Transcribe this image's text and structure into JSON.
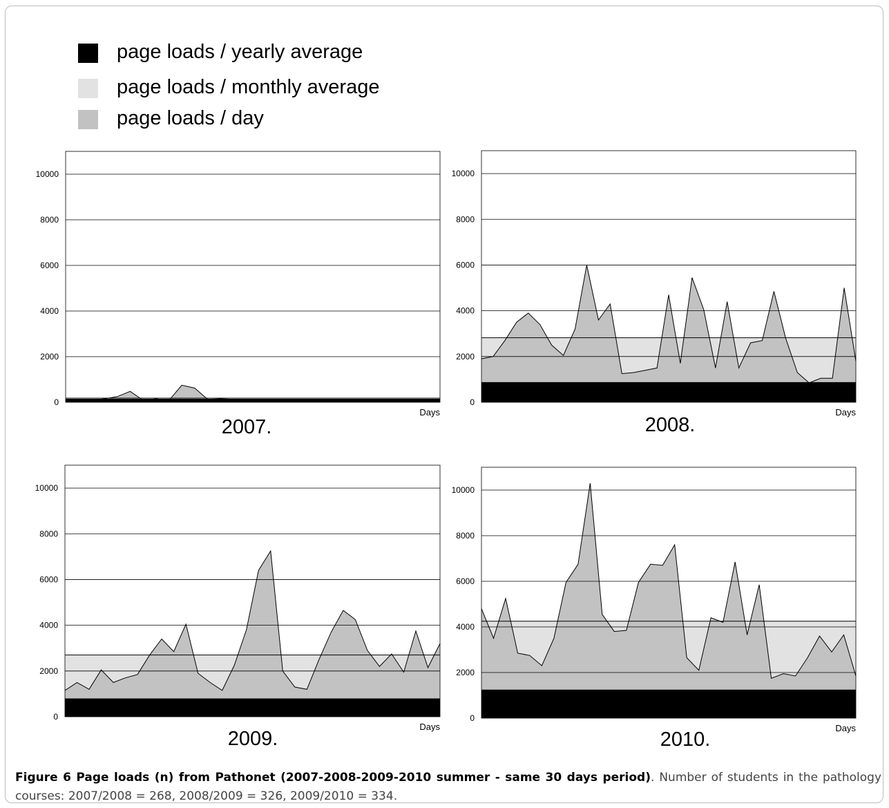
{
  "legend": [
    {
      "label": "page loads / yearly average",
      "color": "#000000"
    },
    {
      "label": "page loads / monthly average",
      "color": "#e2e2e2"
    },
    {
      "label": "page loads / day",
      "color": "#c2c2c2"
    }
  ],
  "chart_data": [
    {
      "type": "area",
      "year_label": "2007.",
      "xlabel": "Days",
      "ylim": [
        0,
        11000
      ],
      "yticks": [
        0,
        2000,
        4000,
        6000,
        8000,
        10000
      ],
      "yearly_average": 150,
      "monthly_average": 180,
      "daily": [
        50,
        80,
        90,
        150,
        250,
        480,
        90,
        150,
        80,
        750,
        620,
        130,
        150,
        130,
        110,
        40,
        40,
        60,
        50,
        30,
        120,
        80,
        60,
        40,
        50,
        40,
        30,
        20,
        30,
        40
      ],
      "colors": {
        "daily": "#c2c2c2",
        "monthly": "#e2e2e2",
        "yearly": "#000000",
        "grid": "#000000"
      }
    },
    {
      "type": "area",
      "year_label": "2008.",
      "xlabel": "Days",
      "ylim": [
        0,
        11000
      ],
      "yticks": [
        0,
        2000,
        4000,
        6000,
        8000,
        10000
      ],
      "yearly_average": 880,
      "monthly_average": 2820,
      "daily": [
        1900,
        2000,
        2700,
        3500,
        3900,
        3400,
        2500,
        2050,
        3200,
        6000,
        3600,
        4300,
        1250,
        1300,
        1400,
        1500,
        4700,
        1700,
        5450,
        4050,
        1500,
        4400,
        1500,
        2600,
        2700,
        4850,
        2800,
        1300,
        850,
        1050,
        1050,
        5000,
        1800
      ],
      "colors": {
        "daily": "#c2c2c2",
        "monthly": "#e2e2e2",
        "yearly": "#000000",
        "grid": "#000000"
      }
    },
    {
      "type": "area",
      "year_label": "2009.",
      "xlabel": "Days",
      "ylim": [
        0,
        11000
      ],
      "yticks": [
        0,
        2000,
        4000,
        6000,
        8000,
        10000
      ],
      "yearly_average": 800,
      "monthly_average": 2700,
      "daily": [
        1150,
        1500,
        1200,
        2050,
        1500,
        1700,
        1850,
        2700,
        3400,
        2850,
        4050,
        1900,
        1500,
        1150,
        2250,
        3800,
        6400,
        7250,
        2000,
        1300,
        1200,
        2500,
        3700,
        4650,
        4250,
        2900,
        2200,
        2750,
        1950,
        3750,
        2150,
        3200
      ],
      "colors": {
        "daily": "#c2c2c2",
        "monthly": "#e2e2e2",
        "yearly": "#000000",
        "grid": "#000000"
      }
    },
    {
      "type": "area",
      "year_label": "2010.",
      "xlabel": "Days",
      "ylim": [
        0,
        11000
      ],
      "yticks": [
        0,
        2000,
        4000,
        6000,
        8000,
        10000
      ],
      "yearly_average": 1250,
      "monthly_average": 4250,
      "daily": [
        4800,
        3500,
        5250,
        2850,
        2750,
        2300,
        3500,
        5950,
        6750,
        10300,
        4550,
        3800,
        3850,
        5950,
        6750,
        6700,
        7600,
        2650,
        2100,
        4400,
        4200,
        6850,
        3650,
        5850,
        1750,
        1950,
        1850,
        2650,
        3600,
        2900,
        3650,
        1850
      ],
      "colors": {
        "daily": "#c2c2c2",
        "monthly": "#e2e2e2",
        "yearly": "#000000",
        "grid": "#000000"
      }
    }
  ],
  "caption": {
    "bold": "Figure 6 Page loads (n) from Pathonet (2007-2008-2009-2010 summer - same 30 days period)",
    "text": ". Number of students in the pathology courses: 2007/2008 = 268, 2008/2009 = 326, 2009/2010 = 334."
  }
}
